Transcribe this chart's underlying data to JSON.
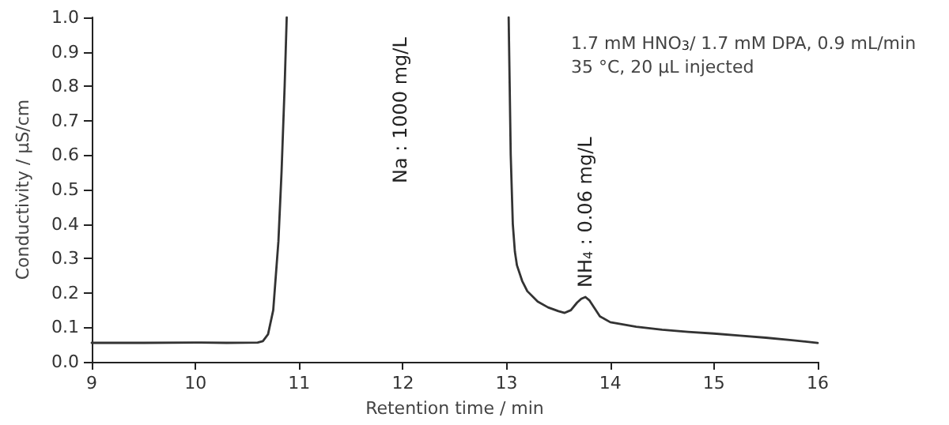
{
  "chart_data": {
    "type": "line",
    "xlabel": "Retention time / min",
    "ylabel": "Conductivity / µS/cm",
    "x": [
      9,
      9.5,
      10,
      10.3,
      10.6,
      10.65,
      10.7,
      10.75,
      10.8,
      10.83,
      10.86,
      10.88,
      10.9,
      13.02,
      13.04,
      13.06,
      13.08,
      13.1,
      13.15,
      13.2,
      13.3,
      13.4,
      13.5,
      13.56,
      13.62,
      13.68,
      13.72,
      13.76,
      13.8,
      13.85,
      13.9,
      14,
      14.25,
      14.5,
      14.75,
      15,
      15.25,
      15.5,
      15.75,
      16
    ],
    "series": [
      {
        "color": "#333333",
        "values": [
          0.055,
          0.055,
          0.056,
          0.055,
          0.056,
          0.06,
          0.08,
          0.15,
          0.35,
          0.55,
          0.8,
          1.0,
          null,
          1.0,
          0.6,
          0.4,
          0.32,
          0.28,
          0.235,
          0.205,
          0.175,
          0.158,
          0.147,
          0.142,
          0.15,
          0.172,
          0.183,
          0.188,
          0.178,
          0.155,
          0.132,
          0.115,
          0.102,
          0.093,
          0.087,
          0.082,
          0.076,
          0.07,
          0.063,
          0.055
        ]
      }
    ],
    "xlim": [
      9,
      16
    ],
    "xticks": [
      9,
      10,
      11,
      12,
      13,
      14,
      15,
      16
    ],
    "ylim": [
      0,
      1
    ],
    "yticks": [
      {
        "value": 0,
        "label": "0.0"
      },
      {
        "value": 0.1,
        "label": "0.1"
      },
      {
        "value": 0.2,
        "label": "0.2"
      },
      {
        "value": 0.3,
        "label": "0.3"
      },
      {
        "value": 0.4,
        "label": "0.4"
      },
      {
        "value": 0.5,
        "label": "0.5"
      },
      {
        "value": 0.6,
        "label": "0.6"
      },
      {
        "value": 0.7,
        "label": "0.7"
      },
      {
        "value": 0.8,
        "label": "0.8"
      },
      {
        "value": 0.9,
        "label": "0.9"
      },
      {
        "value": 1,
        "label": "1.0"
      }
    ],
    "grid": false,
    "marker": "none",
    "line_style": "solid",
    "annotations": [
      "Na : 1000 mg/L",
      {
        "text": "NH$_{4}$ : 0.06 mg/L",
        "x": 13.76,
        "y": 0.188
      },
      "1.7 mM HNO$_{3}$/ 1.7 mM DPA, 0.9 mL/min",
      "35 °C, 20 µL injected"
    ]
  }
}
